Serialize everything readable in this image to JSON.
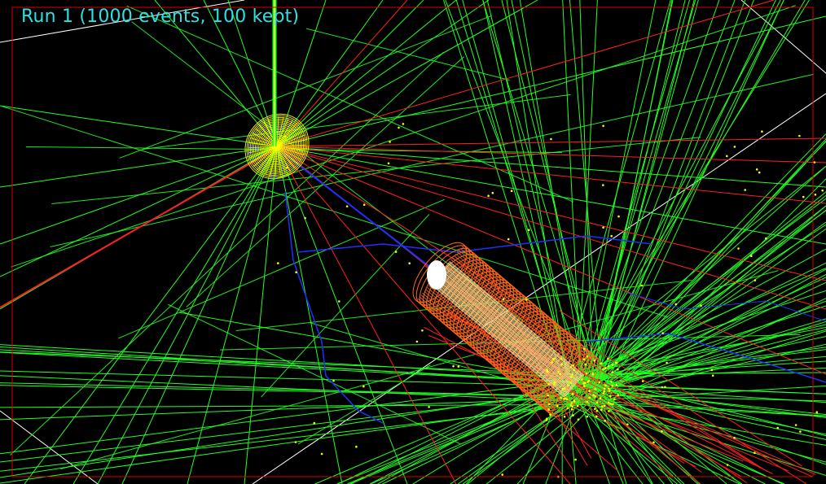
{
  "viewer": {
    "title": "Run 1 (1000 events, 100 kept)",
    "colors": {
      "background": "#000000",
      "title": "#2fe0e0",
      "frame": "#e00000",
      "world_box": "#ffffff",
      "gamma_track": "#22ff22",
      "negative_track": "#ff2020",
      "positive_track": "#2030ff",
      "step_point": "#ffff00",
      "target_cylinder": "#ff6a1a",
      "detector_disk": "#ffff00"
    }
  }
}
